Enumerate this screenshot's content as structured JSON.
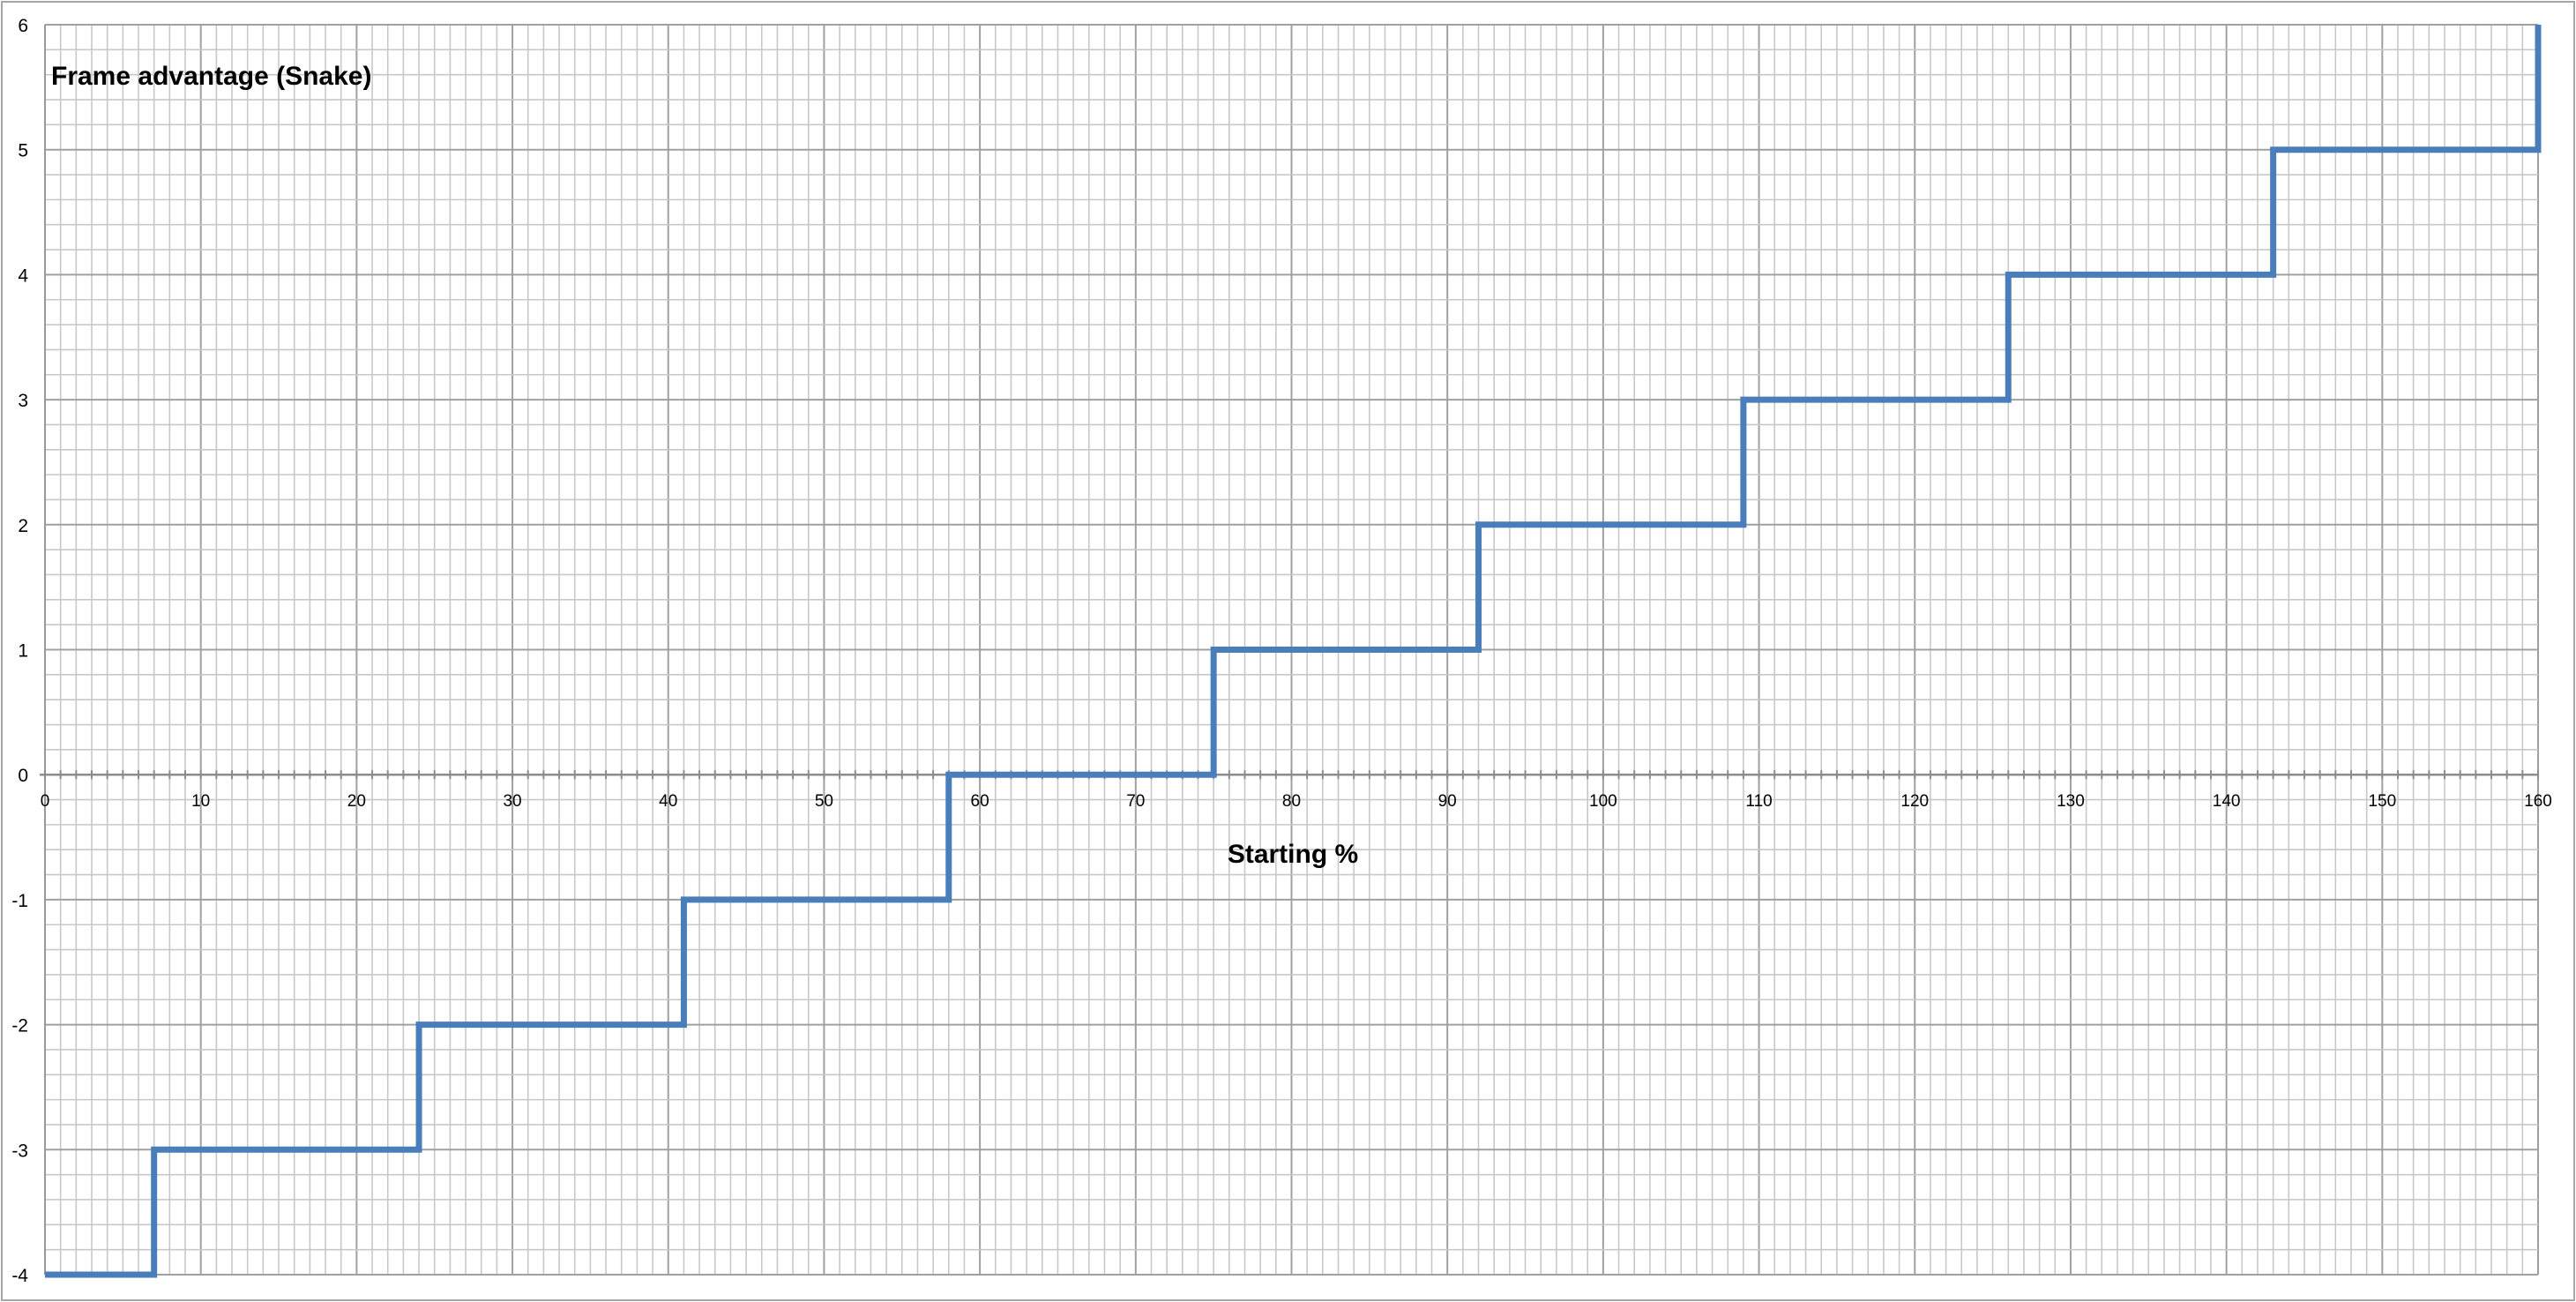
{
  "chart_data": {
    "type": "line",
    "step": true,
    "title": "",
    "xlabel": "Starting %",
    "ylabel": "Frame advantage (Snake)",
    "xlim": [
      0,
      160
    ],
    "ylim": [
      -4,
      6
    ],
    "x_major_step": 10,
    "x_minor_step": 1,
    "y_major_step": 1,
    "y_minor_step": 0.2,
    "grid": true,
    "legend": "none",
    "x_ticks": [
      "0",
      "10",
      "20",
      "30",
      "40",
      "50",
      "60",
      "70",
      "80",
      "90",
      "100",
      "110",
      "120",
      "130",
      "140",
      "150",
      "160"
    ],
    "y_ticks": [
      "-4",
      "-3",
      "-2",
      "-1",
      "0",
      "1",
      "2",
      "3",
      "4",
      "5",
      "6"
    ],
    "series": [
      {
        "color": "#4a7ebb",
        "points": [
          [
            0,
            -4
          ],
          [
            7,
            -4
          ],
          [
            7,
            -3
          ],
          [
            24,
            -3
          ],
          [
            24,
            -2
          ],
          [
            41,
            -2
          ],
          [
            41,
            -1
          ],
          [
            58,
            -1
          ],
          [
            58,
            0
          ],
          [
            75,
            0
          ],
          [
            75,
            1
          ],
          [
            92,
            1
          ],
          [
            92,
            2
          ],
          [
            109,
            2
          ],
          [
            109,
            3
          ],
          [
            126,
            3
          ],
          [
            126,
            4
          ],
          [
            143,
            4
          ],
          [
            143,
            5
          ],
          [
            160,
            5
          ],
          [
            160,
            6
          ]
        ]
      }
    ],
    "colors": {
      "line": "#4a7ebb",
      "major_grid": "#a0a0a0",
      "minor_grid": "#c8c8c8",
      "border": "#a6a6a6"
    }
  }
}
